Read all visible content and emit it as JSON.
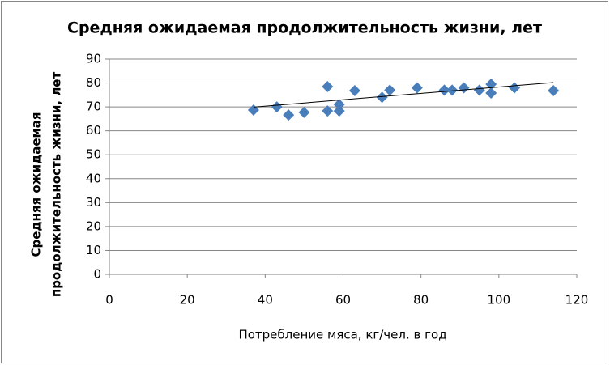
{
  "chart_data": {
    "type": "scatter",
    "title": "Средняя ожидаемая продолжительность жизни, лет",
    "x_label": "Потребление мяса, кг/чел. в год",
    "y_label": [
      "Средняя ожидаемая",
      "продолжительность жизни, лет"
    ],
    "series": [
      {
        "color": "#4a7ebb",
        "x": [
          37,
          43,
          46,
          50,
          56,
          56,
          59,
          59,
          63,
          70,
          72,
          79,
          86,
          88,
          91,
          95,
          98,
          98,
          104,
          114
        ],
        "values": [
          68.7,
          70,
          66.6,
          67.7,
          78.5,
          68.3,
          71,
          68.3,
          76.8,
          74,
          77,
          78,
          77,
          77,
          78,
          77,
          79.5,
          75.8,
          78,
          76.8
        ]
      }
    ],
    "trendline": {
      "color": "#000000",
      "x": [
        37,
        114
      ],
      "values": [
        69.9,
        80.2
      ]
    },
    "xlim": [
      0,
      120
    ],
    "xticks": [
      0,
      20,
      40,
      60,
      80,
      100,
      120
    ],
    "ylim": [
      0,
      90
    ],
    "yticks": [
      0,
      10,
      20,
      30,
      40,
      50,
      60,
      70,
      80,
      90
    ],
    "grid": true
  }
}
